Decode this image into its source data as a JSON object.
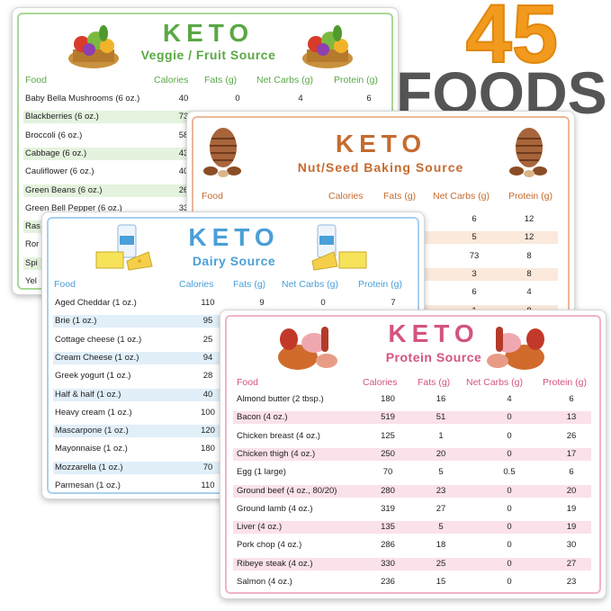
{
  "headline": {
    "count": "45",
    "word": "FOODS"
  },
  "colors": {
    "veggie": "#5aa845",
    "nut": "#c56b2f",
    "dairy": "#4a9fd8",
    "protein": "#d4547e",
    "count_orange": "#f29a1e",
    "count_gray": "#555555"
  },
  "columns": {
    "food": "Food",
    "calories": "Calories",
    "fats": "Fats (g)",
    "net_carbs": "Net Carbs (g)",
    "protein": "Protein (g)"
  },
  "veggie": {
    "keto": "KETO",
    "subtitle": "Veggie / Fruit Source",
    "rows": [
      {
        "food": "Baby Bella Mushrooms (6 oz.)",
        "cal": "40",
        "fat": "0",
        "carbs": "4",
        "protein": "6"
      },
      {
        "food": "Blackberries (6 oz.)",
        "cal": "73",
        "fat": "",
        "carbs": "",
        "protein": ""
      },
      {
        "food": "Broccoli (6 oz.)",
        "cal": "58",
        "fat": "",
        "carbs": "",
        "protein": ""
      },
      {
        "food": "Cabbage (6 oz.)",
        "cal": "43",
        "fat": "",
        "carbs": "",
        "protein": ""
      },
      {
        "food": "Cauliflower (6 oz.)",
        "cal": "40",
        "fat": "",
        "carbs": "",
        "protein": ""
      },
      {
        "food": "Green Beans (6 oz.)",
        "cal": "26",
        "fat": "",
        "carbs": "",
        "protein": ""
      },
      {
        "food": "Green Bell Pepper (6 oz.)",
        "cal": "33",
        "fat": "",
        "carbs": "",
        "protein": ""
      },
      {
        "food": "Ras",
        "cal": "",
        "fat": "",
        "carbs": "",
        "protein": ""
      },
      {
        "food": "Ror",
        "cal": "",
        "fat": "",
        "carbs": "",
        "protein": ""
      },
      {
        "food": "Spi",
        "cal": "",
        "fat": "",
        "carbs": "",
        "protein": ""
      },
      {
        "food": "Yel",
        "cal": "",
        "fat": "",
        "carbs": "",
        "protein": ""
      }
    ]
  },
  "nut": {
    "keto": "KETO",
    "subtitle": "Nut/Seed Baking Source",
    "rows": [
      {
        "carbs": "6",
        "protein": "12"
      },
      {
        "carbs": "5",
        "protein": "12"
      },
      {
        "carbs": "73",
        "protein": "8"
      },
      {
        "carbs": "3",
        "protein": "8"
      },
      {
        "carbs": "6",
        "protein": "4"
      },
      {
        "carbs": "1",
        "protein": "8"
      }
    ]
  },
  "dairy": {
    "keto": "KETO",
    "subtitle": "Dairy Source",
    "rows": [
      {
        "food": "Aged Cheddar (1 oz.)",
        "cal": "110",
        "fat": "9",
        "carbs": "0",
        "protein": "7"
      },
      {
        "food": "Brie (1 oz.)",
        "cal": "95"
      },
      {
        "food": "Cottage cheese (1 oz.)",
        "cal": "25"
      },
      {
        "food": "Cream Cheese (1 oz.)",
        "cal": "94"
      },
      {
        "food": "Greek yogurt (1 oz.)",
        "cal": "28"
      },
      {
        "food": "Half & half (1 oz.)",
        "cal": "40"
      },
      {
        "food": "Heavy cream (1 oz.)",
        "cal": "100"
      },
      {
        "food": "Mascarpone (1 oz.)",
        "cal": "120"
      },
      {
        "food": "Mayonnaise (1 oz.)",
        "cal": "180"
      },
      {
        "food": "Mozzarella (1 oz.)",
        "cal": "70"
      },
      {
        "food": "Parmesan (1 oz.)",
        "cal": "110"
      }
    ]
  },
  "protein": {
    "keto": "KETO",
    "subtitle": "Protein Source",
    "rows": [
      {
        "food": "Almond butter (2 tbsp.)",
        "cal": "180",
        "fat": "16",
        "carbs": "4",
        "protein": "6"
      },
      {
        "food": "Bacon (4 oz.)",
        "cal": "519",
        "fat": "51",
        "carbs": "0",
        "protein": "13"
      },
      {
        "food": "Chicken breast (4 oz.)",
        "cal": "125",
        "fat": "1",
        "carbs": "0",
        "protein": "26"
      },
      {
        "food": "Chicken thigh (4 oz.)",
        "cal": "250",
        "fat": "20",
        "carbs": "0",
        "protein": "17"
      },
      {
        "food": "Egg (1 large)",
        "cal": "70",
        "fat": "5",
        "carbs": "0.5",
        "protein": "6"
      },
      {
        "food": "Ground beef (4 oz., 80/20)",
        "cal": "280",
        "fat": "23",
        "carbs": "0",
        "protein": "20"
      },
      {
        "food": "Ground lamb (4 oz.)",
        "cal": "319",
        "fat": "27",
        "carbs": "0",
        "protein": "19"
      },
      {
        "food": "Liver (4 oz.)",
        "cal": "135",
        "fat": "5",
        "carbs": "0",
        "protein": "19"
      },
      {
        "food": "Pork chop (4 oz.)",
        "cal": "286",
        "fat": "18",
        "carbs": "0",
        "protein": "30"
      },
      {
        "food": "Ribeye steak (4 oz.)",
        "cal": "330",
        "fat": "25",
        "carbs": "0",
        "protein": "27"
      },
      {
        "food": "Salmon (4 oz.)",
        "cal": "236",
        "fat": "15",
        "carbs": "0",
        "protein": "23"
      }
    ]
  }
}
